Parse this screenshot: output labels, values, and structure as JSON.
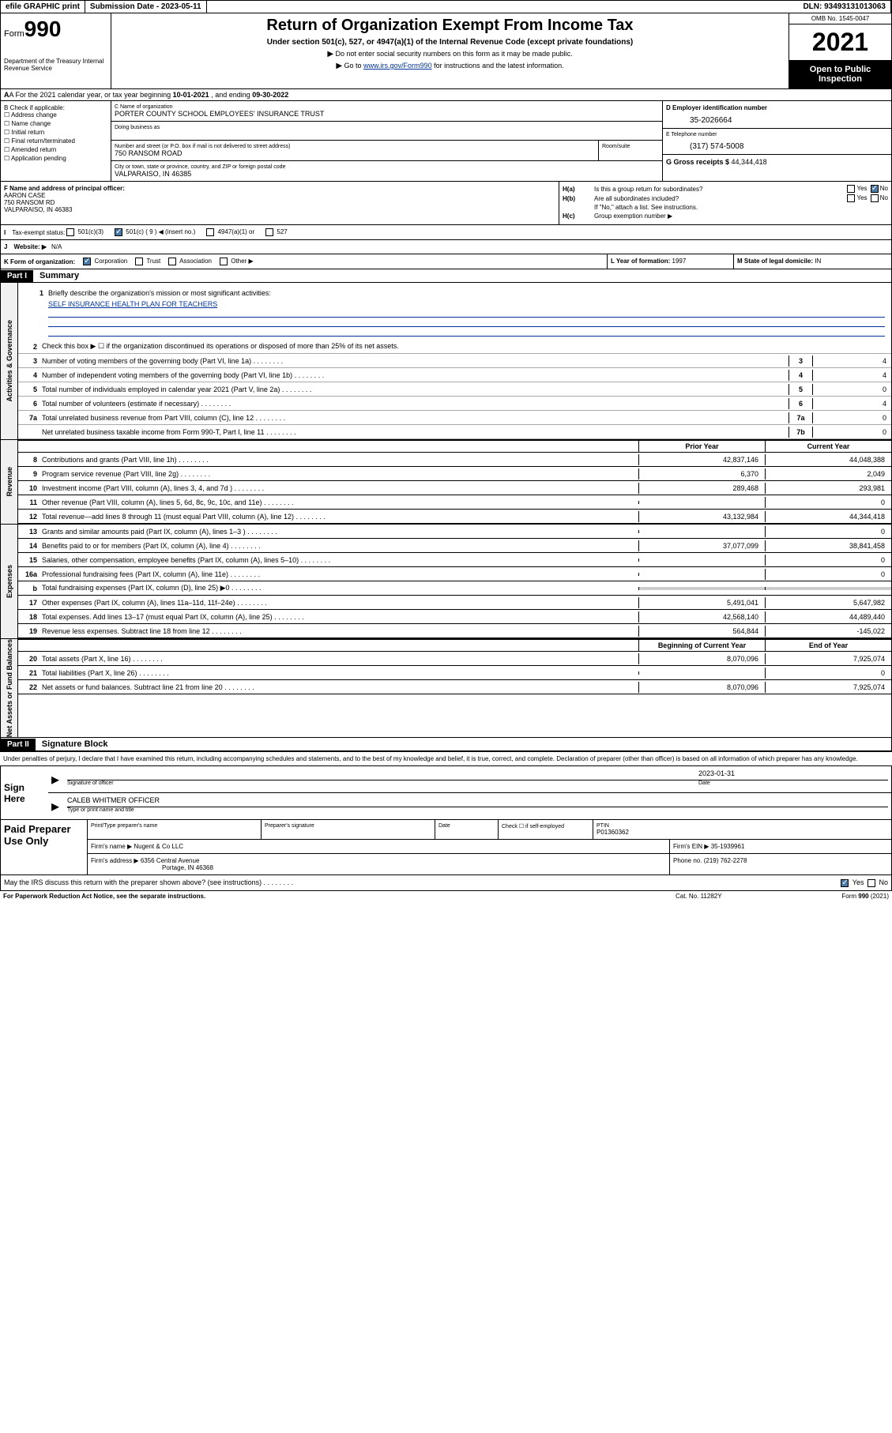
{
  "topbar": {
    "efile": "efile GRAPHIC print",
    "submission_label": "Submission Date - ",
    "submission_date": "2023-05-11",
    "dln_label": "DLN: ",
    "dln": "93493131013063"
  },
  "header": {
    "form_word": "Form",
    "form_num": "990",
    "dept": "Department of the Treasury\nInternal Revenue Service",
    "title": "Return of Organization Exempt From Income Tax",
    "subtitle": "Under section 501(c), 527, or 4947(a)(1) of the Internal Revenue Code (except private foundations)",
    "instr1": "Do not enter social security numbers on this form as it may be made public.",
    "instr2_pre": "Go to ",
    "instr2_link": "www.irs.gov/Form990",
    "instr2_post": " for instructions and the latest information.",
    "omb": "OMB No. 1545-0047",
    "year": "2021",
    "open_public": "Open to Public Inspection"
  },
  "sectionA": {
    "prefix": "A For the 2021 calendar year, or tax year beginning ",
    "begin": "10-01-2021",
    "mid": " , and ending ",
    "end": "09-30-2022"
  },
  "colB": {
    "header": "B Check if applicable:",
    "opts": [
      "Address change",
      "Name change",
      "Initial return",
      "Final return/terminated",
      "Amended return",
      "Application pending"
    ]
  },
  "org": {
    "name_label": "C Name of organization",
    "name": "PORTER COUNTY SCHOOL EMPLOYEES' INSURANCE TRUST",
    "dba_label": "Doing business as",
    "addr_label": "Number and street (or P.O. box if mail is not delivered to street address)",
    "room_label": "Room/suite",
    "addr": "750 RANSOM ROAD",
    "city_label": "City or town, state or province, country, and ZIP or foreign postal code",
    "city": "VALPARAISO, IN  46385"
  },
  "ein": {
    "label": "D Employer identification number",
    "value": "35-2026664"
  },
  "phone": {
    "label": "E Telephone number",
    "value": "(317) 574-5008"
  },
  "gross": {
    "label": "G Gross receipts $ ",
    "value": "44,344,418"
  },
  "f": {
    "label": "F Name and address of principal officer:",
    "name": "AARON CASE",
    "addr": "750 RANSOM RD",
    "city": "VALPARAISO, IN  46383"
  },
  "h": {
    "a_label": "H(a)",
    "a_text": "Is this a group return for subordinates?",
    "b_label": "H(b)",
    "b_text": "Are all subordinates included?",
    "b_note": "If \"No,\" attach a list. See instructions.",
    "c_label": "H(c)",
    "c_text": "Group exemption number ▶",
    "yes": "Yes",
    "no": "No"
  },
  "status": {
    "i_label": "I",
    "label": "Tax-exempt status:",
    "opt1": "501(c)(3)",
    "opt2": "501(c) ( 9 ) ◀ (insert no.)",
    "opt3": "4947(a)(1) or",
    "opt4": "527"
  },
  "website": {
    "label": "J",
    "text": "Website: ▶",
    "value": "N/A"
  },
  "k": {
    "label": "K Form of organization:",
    "opts": [
      "Corporation",
      "Trust",
      "Association",
      "Other ▶"
    ],
    "l_label": "L Year of formation: ",
    "l_val": "1997",
    "m_label": "M State of legal domicile: ",
    "m_val": "IN"
  },
  "part1": {
    "hdr": "Part I",
    "title": "Summary"
  },
  "mission": {
    "num": "1",
    "label": "Briefly describe the organization's mission or most significant activities:",
    "text": "SELF INSURANCE HEALTH PLAN FOR TEACHERS"
  },
  "gov_lines": [
    {
      "num": "2",
      "text": "Check this box ▶ ☐ if the organization discontinued its operations or disposed of more than 25% of its net assets."
    },
    {
      "num": "3",
      "text": "Number of voting members of the governing body (Part VI, line 1a)",
      "box": "3",
      "val": "4"
    },
    {
      "num": "4",
      "text": "Number of independent voting members of the governing body (Part VI, line 1b)",
      "box": "4",
      "val": "4"
    },
    {
      "num": "5",
      "text": "Total number of individuals employed in calendar year 2021 (Part V, line 2a)",
      "box": "5",
      "val": "0"
    },
    {
      "num": "6",
      "text": "Total number of volunteers (estimate if necessary)",
      "box": "6",
      "val": "4"
    },
    {
      "num": "7a",
      "text": "Total unrelated business revenue from Part VIII, column (C), line 12",
      "box": "7a",
      "val": "0"
    },
    {
      "num": "",
      "text": "Net unrelated business taxable income from Form 990-T, Part I, line 11",
      "box": "7b",
      "val": "0"
    }
  ],
  "tc_headers": {
    "prior": "Prior Year",
    "current": "Current Year"
  },
  "revenue": [
    {
      "num": "8",
      "text": "Contributions and grants (Part VIII, line 1h)",
      "prior": "42,837,146",
      "current": "44,048,388"
    },
    {
      "num": "9",
      "text": "Program service revenue (Part VIII, line 2g)",
      "prior": "6,370",
      "current": "2,049"
    },
    {
      "num": "10",
      "text": "Investment income (Part VIII, column (A), lines 3, 4, and 7d )",
      "prior": "289,468",
      "current": "293,981"
    },
    {
      "num": "11",
      "text": "Other revenue (Part VIII, column (A), lines 5, 6d, 8c, 9c, 10c, and 11e)",
      "prior": "",
      "current": "0"
    },
    {
      "num": "12",
      "text": "Total revenue—add lines 8 through 11 (must equal Part VIII, column (A), line 12)",
      "prior": "43,132,984",
      "current": "44,344,418"
    }
  ],
  "expenses": [
    {
      "num": "13",
      "text": "Grants and similar amounts paid (Part IX, column (A), lines 1–3 )",
      "prior": "",
      "current": "0"
    },
    {
      "num": "14",
      "text": "Benefits paid to or for members (Part IX, column (A), line 4)",
      "prior": "37,077,099",
      "current": "38,841,458"
    },
    {
      "num": "15",
      "text": "Salaries, other compensation, employee benefits (Part IX, column (A), lines 5–10)",
      "prior": "",
      "current": "0"
    },
    {
      "num": "16a",
      "text": "Professional fundraising fees (Part IX, column (A), line 11e)",
      "prior": "",
      "current": "0"
    },
    {
      "num": "b",
      "text": "Total fundraising expenses (Part IX, column (D), line 25) ▶0",
      "prior": "SHADED",
      "current": "SHADED"
    },
    {
      "num": "17",
      "text": "Other expenses (Part IX, column (A), lines 11a–11d, 11f–24e)",
      "prior": "5,491,041",
      "current": "5,647,982"
    },
    {
      "num": "18",
      "text": "Total expenses. Add lines 13–17 (must equal Part IX, column (A), line 25)",
      "prior": "42,568,140",
      "current": "44,489,440"
    },
    {
      "num": "19",
      "text": "Revenue less expenses. Subtract line 18 from line 12",
      "prior": "564,844",
      "current": "-145,022"
    }
  ],
  "na_headers": {
    "begin": "Beginning of Current Year",
    "end": "End of Year"
  },
  "netassets": [
    {
      "num": "20",
      "text": "Total assets (Part X, line 16)",
      "prior": "8,070,096",
      "current": "7,925,074"
    },
    {
      "num": "21",
      "text": "Total liabilities (Part X, line 26)",
      "prior": "",
      "current": "0"
    },
    {
      "num": "22",
      "text": "Net assets or fund balances. Subtract line 21 from line 20",
      "prior": "8,070,096",
      "current": "7,925,074"
    }
  ],
  "part2": {
    "hdr": "Part II",
    "title": "Signature Block"
  },
  "sig_decl": "Under penalties of perjury, I declare that I have examined this return, including accompanying schedules and statements, and to the best of my knowledge and belief, it is true, correct, and complete. Declaration of preparer (other than officer) is based on all information of which preparer has any knowledge.",
  "sign": {
    "here": "Sign Here",
    "sig_label": "Signature of officer",
    "date_label": "Date",
    "date": "2023-01-31",
    "name": "CALEB WHITMER OFFICER",
    "name_label": "Type or print name and title"
  },
  "paid": {
    "title": "Paid Preparer Use Only",
    "r1": {
      "c1_label": "Print/Type preparer's name",
      "c2_label": "Preparer's signature",
      "c3_label": "Date",
      "c4_label": "Check ☐ if self-employed",
      "c5_label": "PTIN",
      "c5_val": "P01360362"
    },
    "r2": {
      "label": "Firm's name    ▶ ",
      "val": "Nugent & Co LLC",
      "ein_label": "Firm's EIN ▶ ",
      "ein": "35-1939961"
    },
    "r3": {
      "label": "Firm's address ▶ ",
      "val": "6356 Central Avenue",
      "city": "Portage, IN  46368",
      "phone_label": "Phone no. ",
      "phone": "(219) 762-2278"
    }
  },
  "discuss": {
    "text": "May the IRS discuss this return with the preparer shown above? (see instructions)",
    "yes": "Yes",
    "no": "No"
  },
  "footer": {
    "left": "For Paperwork Reduction Act Notice, see the separate instructions.",
    "mid": "Cat. No. 11282Y",
    "right": "Form 990 (2021)"
  },
  "vert_labels": {
    "gov": "Activities & Governance",
    "rev": "Revenue",
    "exp": "Expenses",
    "na": "Net Assets or Fund Balances"
  }
}
